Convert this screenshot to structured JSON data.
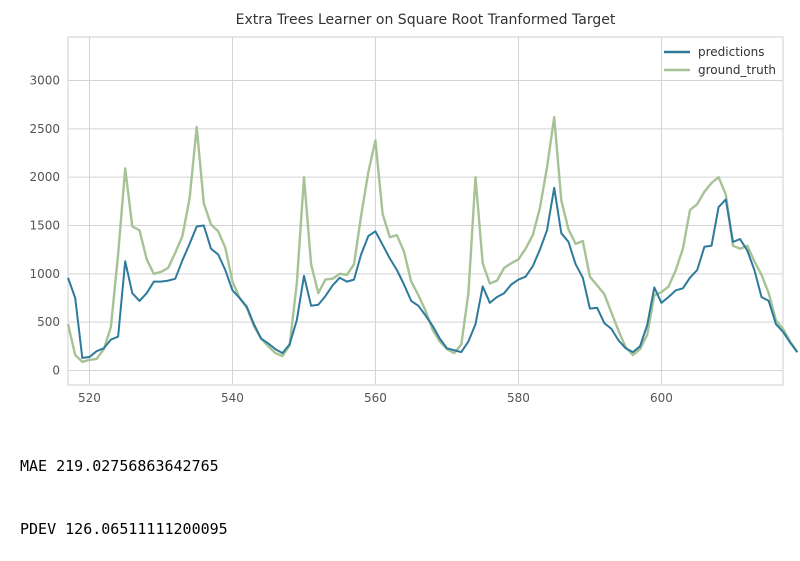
{
  "chart_data": {
    "type": "line",
    "title": "Extra Trees Learner on Square Root Tranformed Target",
    "xlabel": "",
    "ylabel": "",
    "xlim": [
      517,
      617
    ],
    "ylim": [
      -150,
      3450
    ],
    "x_ticks": [
      520,
      540,
      560,
      580,
      600
    ],
    "y_ticks": [
      0,
      500,
      1000,
      1500,
      2000,
      2500,
      3000
    ],
    "grid": true,
    "legend_position": "top-right",
    "x_start": 517,
    "series": [
      {
        "name": "predictions",
        "color": "#2e7a9b",
        "values": [
          960,
          750,
          130,
          140,
          200,
          230,
          320,
          350,
          1130,
          800,
          720,
          800,
          920,
          920,
          930,
          950,
          1140,
          1310,
          1490,
          1500,
          1260,
          1200,
          1040,
          830,
          750,
          660,
          480,
          330,
          280,
          220,
          180,
          270,
          520,
          980,
          670,
          680,
          770,
          880,
          960,
          920,
          940,
          1200,
          1390,
          1440,
          1300,
          1160,
          1040,
          890,
          720,
          670,
          570,
          460,
          330,
          230,
          210,
          190,
          300,
          480,
          870,
          700,
          760,
          800,
          890,
          940,
          970,
          1080,
          1250,
          1450,
          1890,
          1420,
          1330,
          1100,
          960,
          640,
          650,
          490,
          430,
          310,
          230,
          190,
          250,
          470,
          860,
          700,
          760,
          830,
          850,
          960,
          1040,
          1280,
          1290,
          1690,
          1770,
          1330,
          1360,
          1240,
          1040,
          760,
          720,
          480,
          400,
          290,
          190
        ]
      },
      {
        "name": "ground_truth",
        "color": "#a7c295",
        "values": [
          480,
          160,
          90,
          110,
          120,
          220,
          450,
          1200,
          2090,
          1490,
          1450,
          1150,
          1000,
          1020,
          1060,
          1220,
          1390,
          1780,
          2520,
          1730,
          1510,
          1440,
          1270,
          920,
          750,
          650,
          460,
          330,
          250,
          180,
          150,
          260,
          900,
          2000,
          1100,
          800,
          940,
          950,
          1000,
          990,
          1100,
          1600,
          2050,
          2380,
          1620,
          1380,
          1400,
          1230,
          920,
          780,
          620,
          420,
          300,
          220,
          180,
          270,
          800,
          2000,
          1110,
          900,
          930,
          1060,
          1110,
          1150,
          1260,
          1400,
          1680,
          2100,
          2620,
          1760,
          1460,
          1310,
          1340,
          970,
          880,
          790,
          600,
          410,
          240,
          160,
          220,
          370,
          780,
          810,
          870,
          1040,
          1260,
          1660,
          1720,
          1850,
          1940,
          2000,
          1820,
          1290,
          1260,
          1290,
          1130,
          990,
          800,
          520,
          430,
          300,
          190
        ]
      }
    ]
  },
  "metrics": {
    "mae_line": "MAE 219.02756863642765",
    "pdev_line": "PDEV 126.06511111200095"
  }
}
